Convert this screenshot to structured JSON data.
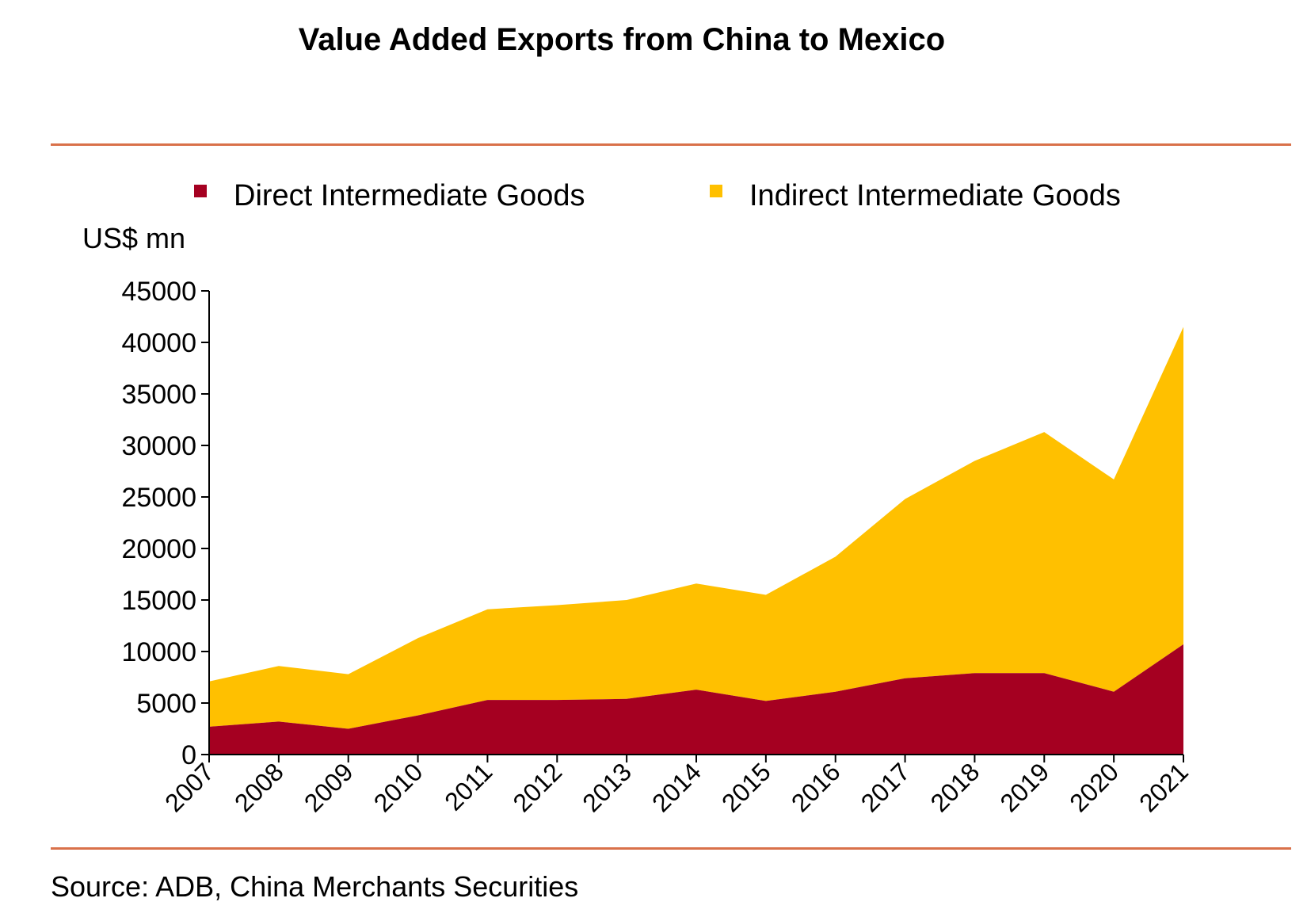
{
  "title": "Value Added Exports from China to Mexico",
  "source": "Source: ADB, China Merchants Securities",
  "colors": {
    "direct": "#a50021",
    "indirect": "#ffc000",
    "rule": "#d9714a"
  },
  "chart_data": {
    "type": "area",
    "stacked": true,
    "title": "Value Added Exports from China to Mexico",
    "ylabel": "US$ mn",
    "xlabel": "",
    "ylim": [
      0,
      45000
    ],
    "yticks": [
      0,
      5000,
      10000,
      15000,
      20000,
      25000,
      30000,
      35000,
      40000,
      45000
    ],
    "categories": [
      "2007",
      "2008",
      "2009",
      "2010",
      "2011",
      "2012",
      "2013",
      "2014",
      "2015",
      "2016",
      "2017",
      "2018",
      "2019",
      "2020",
      "2021"
    ],
    "series": [
      {
        "name": "Direct Intermediate Goods",
        "values": [
          2700,
          3200,
          2500,
          3800,
          5300,
          5300,
          5400,
          6300,
          5200,
          6100,
          7400,
          7900,
          7900,
          6100,
          10700
        ]
      },
      {
        "name": "Indirect Intermediate Goods",
        "values": [
          4400,
          5400,
          5300,
          7500,
          8800,
          9200,
          9600,
          10300,
          10300,
          13100,
          17400,
          20600,
          23400,
          20600,
          30800
        ]
      }
    ],
    "grid": false,
    "legend": "top"
  }
}
